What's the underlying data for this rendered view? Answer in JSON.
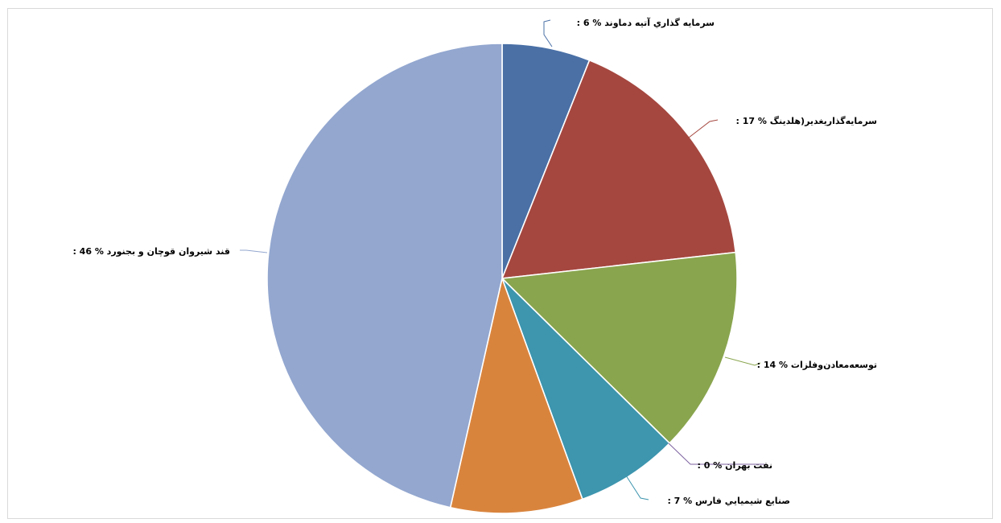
{
  "chart_data": {
    "type": "pie",
    "title": "",
    "slices": [
      {
        "label": "سرمايه گذاري آتيه دماوند",
        "display_label": ": 6 % سرمايه گذاري آتيه دماوند",
        "value": 6,
        "color": "#4a70a6"
      },
      {
        "label": "سرمايه‌گذاريغدير(هلدينگ",
        "display_label": ": 17 % سرمايه‌گذاريغدير(هلدينگ",
        "value": 17,
        "color": "#a5473f"
      },
      {
        "label": "توسعه‌معادن‌وفلزات",
        "display_label": ": 14 % توسعه‌معادن‌وفلزات",
        "value": 14,
        "color": "#89a54e"
      },
      {
        "label": "نفت بهران",
        "display_label": ": 0 % نفت بهران",
        "value": 0,
        "color": "#7d62a0"
      },
      {
        "label": "صنايع شيميايي فارس",
        "display_label": ": 7 % صنايع شيميايي فارس",
        "value": 7,
        "color": "#3d95ae"
      },
      {
        "label": "",
        "display_label": "",
        "value": 9,
        "color": "#d9843d"
      },
      {
        "label": "قند شيروان قوچان و بجنورد",
        "display_label": ": 46 % قند شيروان قوچان و بجنورد",
        "value": 46,
        "color": "#93a7cf"
      }
    ]
  }
}
